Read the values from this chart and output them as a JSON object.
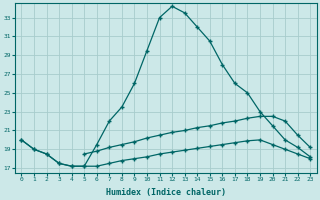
{
  "xlabel": "Humidex (Indice chaleur)",
  "bg_color": "#cce8e8",
  "grid_color": "#a8cccc",
  "line_color": "#006666",
  "xlim": [
    -0.5,
    23.5
  ],
  "ylim": [
    16.5,
    34.5
  ],
  "yticks": [
    17,
    19,
    21,
    23,
    25,
    27,
    29,
    31,
    33
  ],
  "xticks": [
    0,
    1,
    2,
    3,
    4,
    5,
    6,
    7,
    8,
    9,
    10,
    11,
    12,
    13,
    14,
    15,
    16,
    17,
    18,
    19,
    20,
    21,
    22,
    23
  ],
  "line_main_x": [
    0,
    1,
    2,
    3,
    4,
    5,
    6,
    7,
    8,
    9,
    10,
    11,
    12,
    13,
    14,
    15,
    16,
    17,
    18,
    19,
    20,
    21,
    22,
    23
  ],
  "line_main_y": [
    20.0,
    19.0,
    18.5,
    17.5,
    17.2,
    17.2,
    19.5,
    22.0,
    23.5,
    26.0,
    29.5,
    33.0,
    34.2,
    33.5,
    32.0,
    30.5,
    28.0,
    26.0,
    25.0,
    23.0,
    21.5,
    20.0,
    19.2,
    18.2
  ],
  "line_mid_x": [
    5,
    6,
    7,
    8,
    9,
    10,
    11,
    12,
    13,
    14,
    15,
    16,
    17,
    18,
    19,
    20,
    21,
    22,
    23
  ],
  "line_mid_y": [
    18.5,
    18.8,
    19.2,
    19.5,
    19.8,
    20.2,
    20.5,
    20.8,
    21.0,
    21.3,
    21.5,
    21.8,
    22.0,
    22.3,
    22.5,
    22.5,
    22.0,
    20.5,
    19.2
  ],
  "line_bot_x": [
    0,
    1,
    2,
    3,
    4,
    5,
    6,
    7,
    8,
    9,
    10,
    11,
    12,
    13,
    14,
    15,
    16,
    17,
    18,
    19,
    20,
    21,
    22,
    23
  ],
  "line_bot_y": [
    20.0,
    19.0,
    18.5,
    17.5,
    17.2,
    17.2,
    17.2,
    17.5,
    17.8,
    18.0,
    18.2,
    18.5,
    18.7,
    18.9,
    19.1,
    19.3,
    19.5,
    19.7,
    19.9,
    20.0,
    19.5,
    19.0,
    18.5,
    18.0
  ]
}
